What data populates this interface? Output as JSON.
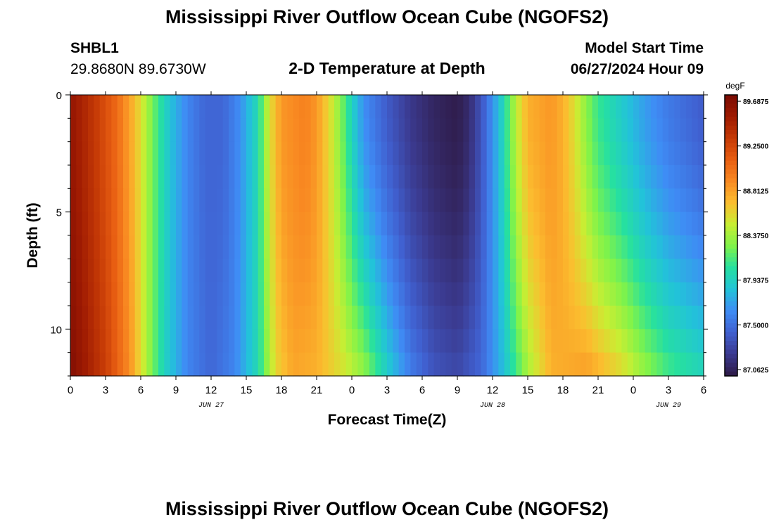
{
  "header": {
    "title": "Mississippi River Outflow Ocean Cube (NGOFS2)",
    "station_id": "SHBL1",
    "station_coords": "29.8680N  89.6730W",
    "subtitle": "2-D Temperature at Depth",
    "model_start_label": "Model Start Time",
    "model_start_value": "06/27/2024 Hour 09"
  },
  "footer": {
    "title": "Mississippi River Outflow Ocean Cube (NGOFS2)"
  },
  "chart_data": {
    "type": "heatmap",
    "title": "2-D Temperature at Depth",
    "xlabel": "Forecast Time(Z)",
    "ylabel": "Depth (ft)",
    "x_tick_labels": [
      "0",
      "3",
      "6",
      "9",
      "12",
      "15",
      "18",
      "21",
      "0",
      "3",
      "6",
      "9",
      "12",
      "15",
      "18",
      "21",
      "0",
      "3",
      "6"
    ],
    "x_range_hours": [
      0,
      54
    ],
    "date_labels": [
      {
        "text": "JUN 27",
        "hour": 12
      },
      {
        "text": "JUN 28",
        "hour": 36
      },
      {
        "text": "JUN 29",
        "hour": 51
      }
    ],
    "y_tick_labels": [
      "0",
      "5",
      "10"
    ],
    "y_range_ft": [
      0,
      12
    ],
    "colorbar": {
      "unit": "degF",
      "min": 87.0,
      "max": 89.75,
      "tick_labels": [
        "89.6875",
        "89.2500",
        "88.8125",
        "88.3750",
        "87.9375",
        "87.5000",
        "87.0625"
      ],
      "colors": [
        "#2e1a45",
        "#3b3a8f",
        "#4060d0",
        "#3f8cf5",
        "#22c3d9",
        "#26e0a0",
        "#7ff34a",
        "#c8ee33",
        "#fbbe2f",
        "#f98a22",
        "#e85e12",
        "#c53a06",
        "#9e1a02",
        "#7a0b03"
      ]
    },
    "surface_profile": [
      {
        "hour": 0,
        "value": 89.6
      },
      {
        "hour": 2,
        "value": 89.35
      },
      {
        "hour": 4,
        "value": 89.05
      },
      {
        "hour": 5.5,
        "value": 88.7
      },
      {
        "hour": 6.5,
        "value": 88.4
      },
      {
        "hour": 7.5,
        "value": 88.1
      },
      {
        "hour": 8.5,
        "value": 87.85
      },
      {
        "hour": 10,
        "value": 87.6
      },
      {
        "hour": 11.5,
        "value": 87.45
      },
      {
        "hour": 13,
        "value": 87.45
      },
      {
        "hour": 14.5,
        "value": 87.65
      },
      {
        "hour": 16,
        "value": 88.0
      },
      {
        "hour": 17,
        "value": 88.55
      },
      {
        "hour": 18,
        "value": 88.85
      },
      {
        "hour": 20,
        "value": 88.95
      },
      {
        "hour": 21,
        "value": 88.85
      },
      {
        "hour": 22,
        "value": 88.6
      },
      {
        "hour": 23,
        "value": 88.3
      },
      {
        "hour": 24,
        "value": 87.95
      },
      {
        "hour": 25,
        "value": 87.65
      },
      {
        "hour": 27,
        "value": 87.4
      },
      {
        "hour": 29,
        "value": 87.2
      },
      {
        "hour": 31,
        "value": 87.08
      },
      {
        "hour": 33,
        "value": 87.02
      },
      {
        "hour": 34,
        "value": 87.12
      },
      {
        "hour": 35,
        "value": 87.35
      },
      {
        "hour": 36,
        "value": 87.65
      },
      {
        "hour": 37,
        "value": 88.0
      },
      {
        "hour": 38,
        "value": 88.45
      },
      {
        "hour": 39,
        "value": 88.75
      },
      {
        "hour": 41,
        "value": 88.85
      },
      {
        "hour": 42,
        "value": 88.75
      },
      {
        "hour": 43,
        "value": 88.55
      },
      {
        "hour": 44,
        "value": 88.3
      },
      {
        "hour": 45,
        "value": 88.1
      },
      {
        "hour": 47,
        "value": 87.9
      },
      {
        "hour": 49,
        "value": 87.7
      },
      {
        "hour": 51,
        "value": 87.55
      },
      {
        "hour": 53,
        "value": 87.45
      },
      {
        "hour": 54,
        "value": 87.4
      }
    ],
    "bottom_profile": [
      {
        "hour": 0,
        "value": 89.7
      },
      {
        "hour": 3,
        "value": 89.3
      },
      {
        "hour": 5,
        "value": 88.9
      },
      {
        "hour": 6.5,
        "value": 88.4
      },
      {
        "hour": 8,
        "value": 87.95
      },
      {
        "hour": 10,
        "value": 87.6
      },
      {
        "hour": 12,
        "value": 87.45
      },
      {
        "hour": 14,
        "value": 87.6
      },
      {
        "hour": 16,
        "value": 88.0
      },
      {
        "hour": 17.5,
        "value": 88.6
      },
      {
        "hour": 19,
        "value": 88.8
      },
      {
        "hour": 21,
        "value": 88.75
      },
      {
        "hour": 23,
        "value": 88.55
      },
      {
        "hour": 25,
        "value": 88.3
      },
      {
        "hour": 26,
        "value": 88.1
      },
      {
        "hour": 27,
        "value": 87.9
      },
      {
        "hour": 29,
        "value": 87.55
      },
      {
        "hour": 31,
        "value": 87.35
      },
      {
        "hour": 33,
        "value": 87.28
      },
      {
        "hour": 35,
        "value": 87.45
      },
      {
        "hour": 37,
        "value": 87.85
      },
      {
        "hour": 39,
        "value": 88.4
      },
      {
        "hour": 41,
        "value": 88.75
      },
      {
        "hour": 44,
        "value": 88.8
      },
      {
        "hour": 47,
        "value": 88.55
      },
      {
        "hour": 49,
        "value": 88.3
      },
      {
        "hour": 51,
        "value": 88.1
      },
      {
        "hour": 54,
        "value": 87.95
      }
    ],
    "depth_levels": 12,
    "time_bins": 108
  }
}
